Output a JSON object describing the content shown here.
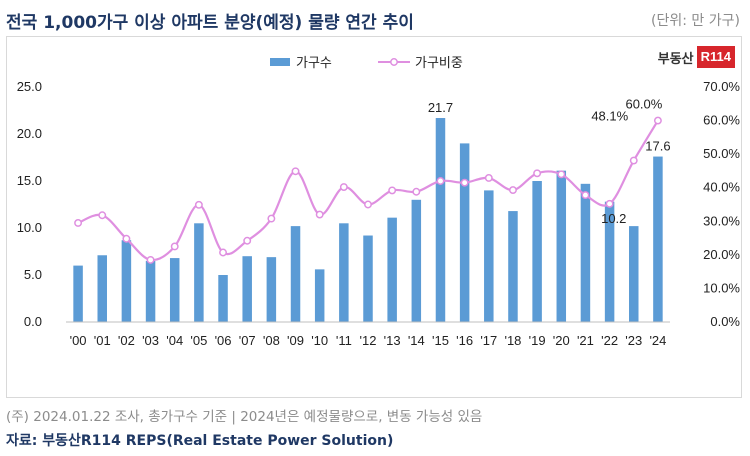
{
  "header": {
    "title": "전국 1,000가구 이상 아파트 분양(예정) 물량 연간 추이",
    "unit": "(단위: 만 가구)"
  },
  "logo": {
    "text": "부동산",
    "box": "R114"
  },
  "footer": {
    "note": "(주) 2024.01.22 조사, 총가구수 기준 | 2024년은 예정물량으로, 변동 가능성 있음",
    "source": "자료: 부동산R114 REPS(Real Estate Power Solution)"
  },
  "colors": {
    "bar": "#5b9bd5",
    "line": "#df8fe0",
    "marker_fill": "#ffffff"
  },
  "chart_data": {
    "type": "bar",
    "categories": [
      "'00",
      "'01",
      "'02",
      "'03",
      "'04",
      "'05",
      "'06",
      "'07",
      "'08",
      "'09",
      "'10",
      "'11",
      "'12",
      "'13",
      "'14",
      "'15",
      "'16",
      "'17",
      "'18",
      "'19",
      "'20",
      "'21",
      "'22",
      "'23",
      "'24"
    ],
    "series": [
      {
        "name": "가구수",
        "type": "bar",
        "axis": "left",
        "values": [
          6.0,
          7.1,
          8.7,
          6.5,
          6.8,
          10.5,
          5.0,
          7.0,
          6.9,
          10.2,
          5.6,
          10.5,
          9.2,
          11.1,
          13.0,
          21.7,
          19.0,
          14.0,
          11.8,
          15.0,
          16.1,
          14.7,
          12.8,
          10.2,
          17.6
        ]
      },
      {
        "name": "가구비중",
        "type": "line",
        "axis": "right",
        "values": [
          29.5,
          31.8,
          24.8,
          18.5,
          22.5,
          34.9,
          20.7,
          24.2,
          30.8,
          44.9,
          32.0,
          40.2,
          35.0,
          39.2,
          38.8,
          42.0,
          41.5,
          42.9,
          39.3,
          44.3,
          44.0,
          37.8,
          35.2,
          48.1,
          60.0
        ]
      }
    ],
    "data_labels": [
      {
        "series": "가구수",
        "category": "'15",
        "text": "21.7"
      },
      {
        "series": "가구수",
        "category": "'23",
        "text": "10.2"
      },
      {
        "series": "가구수",
        "category": "'24",
        "text": "17.6"
      },
      {
        "series": "가구비중",
        "category": "'23",
        "text": "48.1%"
      },
      {
        "series": "가구비중",
        "category": "'24",
        "text": "60.0%"
      }
    ],
    "y_left": {
      "min": 0,
      "max": 25,
      "ticks": [
        "0.0",
        "5.0",
        "10.0",
        "15.0",
        "20.0",
        "25.0"
      ]
    },
    "y_right": {
      "min": 0,
      "max": 70,
      "ticks": [
        "0.0%",
        "10.0%",
        "20.0%",
        "30.0%",
        "40.0%",
        "50.0%",
        "60.0%",
        "70.0%"
      ]
    },
    "grid": false,
    "legend_position": "top-center"
  }
}
